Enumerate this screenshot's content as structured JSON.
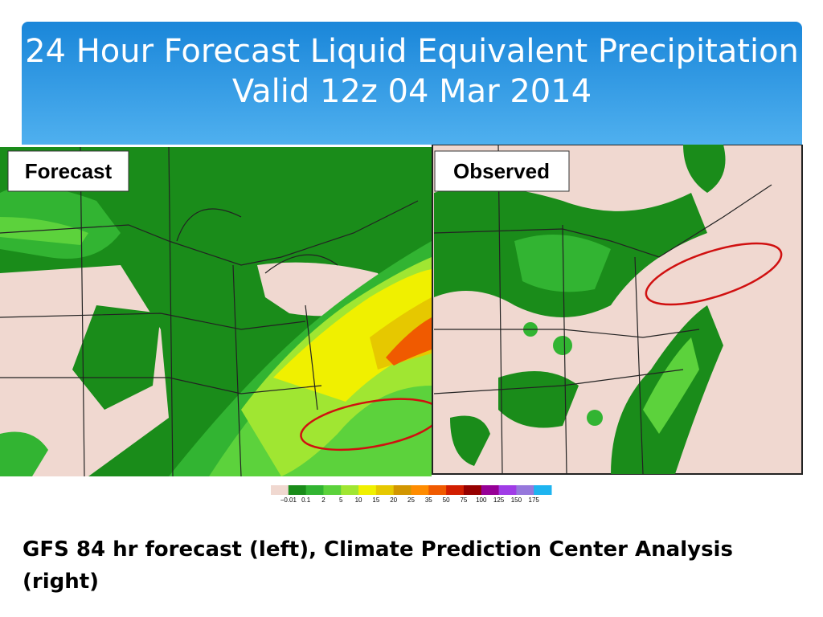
{
  "header": {
    "title": "24 Hour Forecast Liquid Equivalent Precipitation Valid 12z 04 Mar 2014"
  },
  "panels": [
    {
      "label": "Forecast"
    },
    {
      "label": "Observed"
    }
  ],
  "legend": {
    "labels": [
      "−0.01",
      "0.1",
      "2",
      "5",
      "10",
      "15",
      "20",
      "25",
      "35",
      "50",
      "75",
      "100",
      "125",
      "150",
      "175"
    ],
    "colors": [
      "#f0d8d0",
      "#1a8c1a",
      "#32b432",
      "#5cd23c",
      "#a0e632",
      "#f0f000",
      "#e6c800",
      "#d29600",
      "#ff8c00",
      "#f05a00",
      "#d21e00",
      "#960000",
      "#960096",
      "#a03ce6",
      "#9678dc",
      "#1eb4f0"
    ]
  },
  "caption": "GFS 84 hr forecast (left), Climate Prediction Center Analysis (right)"
}
